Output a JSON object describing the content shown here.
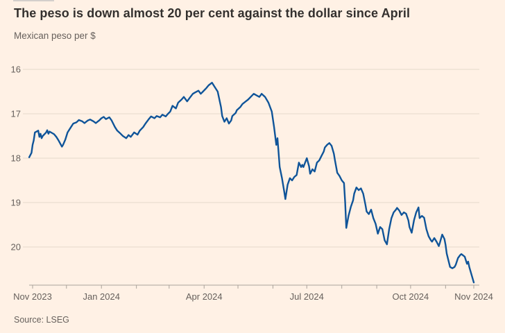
{
  "header": {
    "title": "The peso is down almost 20 per cent against the dollar since April",
    "subtitle": "Mexican peso per $"
  },
  "footer": {
    "source": "Source: LSEG"
  },
  "colors": {
    "background": "#FFF1E5",
    "title_text": "#33302E",
    "muted_text": "#66605C",
    "gridline": "#E6D9CC",
    "axis": "#A9A29A",
    "line": "#0F5499",
    "top_rule": "#D3CFCB"
  },
  "chart_data": {
    "type": "line",
    "title": "The peso is down almost 20 per cent against the dollar since April",
    "ylabel": "Mexican peso per $",
    "source": "Source: LSEG",
    "legend": "none",
    "grid": "horizontal",
    "y_axis": {
      "ticks": [
        16,
        17,
        18,
        19,
        20
      ],
      "min": 16,
      "max": 20.86,
      "inverted_for_currency": true
    },
    "x_axis": {
      "start": "2023-11-01",
      "end": "2024-11-26",
      "tick_dates": [
        "2023-11-01",
        "2023-12-01",
        "2024-01-01",
        "2024-02-01",
        "2024-03-01",
        "2024-04-01",
        "2024-05-01",
        "2024-06-01",
        "2024-07-01",
        "2024-08-01",
        "2024-09-01",
        "2024-10-01",
        "2024-11-01",
        "2024-11-26"
      ],
      "labels": [
        {
          "date": "2023-11-01",
          "label": "Nov 2023"
        },
        {
          "date": "2024-01-01",
          "label": "Jan 2024"
        },
        {
          "date": "2024-04-01",
          "label": "Apr 2024"
        },
        {
          "date": "2024-07-01",
          "label": "Jul 2024"
        },
        {
          "date": "2024-10-01",
          "label": "Oct 2024"
        },
        {
          "date": "2024-11-26",
          "label": "Nov 2024"
        }
      ]
    },
    "series": [
      {
        "name": "Mexican peso per US dollar",
        "color": "#0F5499",
        "points": [
          [
            "2023-10-29",
            17.98
          ],
          [
            "2023-10-31",
            17.88
          ],
          [
            "2023-11-01",
            17.7
          ],
          [
            "2023-11-02",
            17.6
          ],
          [
            "2023-11-03",
            17.42
          ],
          [
            "2023-11-06",
            17.38
          ],
          [
            "2023-11-07",
            17.52
          ],
          [
            "2023-11-08",
            17.45
          ],
          [
            "2023-11-09",
            17.55
          ],
          [
            "2023-11-10",
            17.5
          ],
          [
            "2023-11-13",
            17.42
          ],
          [
            "2023-11-14",
            17.37
          ],
          [
            "2023-11-15",
            17.45
          ],
          [
            "2023-11-16",
            17.4
          ],
          [
            "2023-11-20",
            17.46
          ],
          [
            "2023-11-22",
            17.52
          ],
          [
            "2023-11-24",
            17.6
          ],
          [
            "2023-11-27",
            17.74
          ],
          [
            "2023-11-28",
            17.7
          ],
          [
            "2023-11-30",
            17.58
          ],
          [
            "2023-12-02",
            17.42
          ],
          [
            "2023-12-05",
            17.3
          ],
          [
            "2023-12-07",
            17.22
          ],
          [
            "2023-12-10",
            17.19
          ],
          [
            "2023-12-12",
            17.14
          ],
          [
            "2023-12-15",
            17.17
          ],
          [
            "2023-12-17",
            17.21
          ],
          [
            "2023-12-20",
            17.15
          ],
          [
            "2023-12-22",
            17.13
          ],
          [
            "2023-12-25",
            17.17
          ],
          [
            "2023-12-27",
            17.21
          ],
          [
            "2023-12-30",
            17.15
          ],
          [
            "2024-01-01",
            17.1
          ],
          [
            "2024-01-03",
            17.07
          ],
          [
            "2024-01-05",
            17.12
          ],
          [
            "2024-01-08",
            17.08
          ],
          [
            "2024-01-10",
            17.15
          ],
          [
            "2024-01-13",
            17.3
          ],
          [
            "2024-01-15",
            17.38
          ],
          [
            "2024-01-18",
            17.45
          ],
          [
            "2024-01-20",
            17.5
          ],
          [
            "2024-01-23",
            17.55
          ],
          [
            "2024-01-25",
            17.48
          ],
          [
            "2024-01-27",
            17.52
          ],
          [
            "2024-01-30",
            17.42
          ],
          [
            "2024-02-02",
            17.47
          ],
          [
            "2024-02-04",
            17.38
          ],
          [
            "2024-02-07",
            17.3
          ],
          [
            "2024-02-09",
            17.22
          ],
          [
            "2024-02-12",
            17.12
          ],
          [
            "2024-02-14",
            17.06
          ],
          [
            "2024-02-17",
            17.1
          ],
          [
            "2024-02-19",
            17.05
          ],
          [
            "2024-02-22",
            17.08
          ],
          [
            "2024-02-24",
            17.02
          ],
          [
            "2024-02-27",
            17.06
          ],
          [
            "2024-02-29",
            17.0
          ],
          [
            "2024-03-02",
            16.95
          ],
          [
            "2024-03-04",
            16.82
          ],
          [
            "2024-03-07",
            16.88
          ],
          [
            "2024-03-09",
            16.75
          ],
          [
            "2024-03-12",
            16.68
          ],
          [
            "2024-03-14",
            16.62
          ],
          [
            "2024-03-17",
            16.72
          ],
          [
            "2024-03-19",
            16.65
          ],
          [
            "2024-03-22",
            16.55
          ],
          [
            "2024-03-24",
            16.52
          ],
          [
            "2024-03-27",
            16.48
          ],
          [
            "2024-03-29",
            16.55
          ],
          [
            "2024-03-31",
            16.5
          ],
          [
            "2024-04-03",
            16.42
          ],
          [
            "2024-04-05",
            16.36
          ],
          [
            "2024-04-08",
            16.3
          ],
          [
            "2024-04-11",
            16.42
          ],
          [
            "2024-04-13",
            16.5
          ],
          [
            "2024-04-16",
            16.85
          ],
          [
            "2024-04-17",
            17.05
          ],
          [
            "2024-04-19",
            17.18
          ],
          [
            "2024-04-21",
            17.1
          ],
          [
            "2024-04-23",
            17.22
          ],
          [
            "2024-04-25",
            17.15
          ],
          [
            "2024-04-26",
            17.05
          ],
          [
            "2024-04-29",
            16.98
          ],
          [
            "2024-04-30",
            16.92
          ],
          [
            "2024-05-03",
            16.85
          ],
          [
            "2024-05-05",
            16.78
          ],
          [
            "2024-05-08",
            16.72
          ],
          [
            "2024-05-10",
            16.68
          ],
          [
            "2024-05-13",
            16.6
          ],
          [
            "2024-05-15",
            16.55
          ],
          [
            "2024-05-17",
            16.58
          ],
          [
            "2024-05-20",
            16.62
          ],
          [
            "2024-05-22",
            16.55
          ],
          [
            "2024-05-25",
            16.62
          ],
          [
            "2024-05-28",
            16.75
          ],
          [
            "2024-05-31",
            16.95
          ],
          [
            "2024-06-02",
            17.3
          ],
          [
            "2024-06-04",
            17.7
          ],
          [
            "2024-06-05",
            17.55
          ],
          [
            "2024-06-07",
            18.2
          ],
          [
            "2024-06-09",
            18.45
          ],
          [
            "2024-06-11",
            18.75
          ],
          [
            "2024-06-12",
            18.92
          ],
          [
            "2024-06-14",
            18.6
          ],
          [
            "2024-06-16",
            18.45
          ],
          [
            "2024-06-18",
            18.5
          ],
          [
            "2024-06-20",
            18.42
          ],
          [
            "2024-06-22",
            18.38
          ],
          [
            "2024-06-24",
            18.1
          ],
          [
            "2024-06-26",
            18.2
          ],
          [
            "2024-06-27",
            18.15
          ],
          [
            "2024-06-28",
            18.2
          ],
          [
            "2024-07-01",
            18.0
          ],
          [
            "2024-07-03",
            18.18
          ],
          [
            "2024-07-04",
            18.35
          ],
          [
            "2024-07-06",
            18.25
          ],
          [
            "2024-07-08",
            18.3
          ],
          [
            "2024-07-10",
            18.1
          ],
          [
            "2024-07-12",
            18.05
          ],
          [
            "2024-07-14",
            17.95
          ],
          [
            "2024-07-16",
            17.85
          ],
          [
            "2024-07-17",
            17.76
          ],
          [
            "2024-07-19",
            17.7
          ],
          [
            "2024-07-21",
            17.66
          ],
          [
            "2024-07-23",
            17.72
          ],
          [
            "2024-07-25",
            17.9
          ],
          [
            "2024-07-26",
            18.05
          ],
          [
            "2024-07-28",
            18.33
          ],
          [
            "2024-07-30",
            18.4
          ],
          [
            "2024-08-01",
            18.5
          ],
          [
            "2024-08-03",
            18.56
          ],
          [
            "2024-08-04",
            19.0
          ],
          [
            "2024-08-05",
            19.57
          ],
          [
            "2024-08-07",
            19.3
          ],
          [
            "2024-08-09",
            19.1
          ],
          [
            "2024-08-11",
            18.95
          ],
          [
            "2024-08-12",
            18.8
          ],
          [
            "2024-08-14",
            18.66
          ],
          [
            "2024-08-16",
            18.72
          ],
          [
            "2024-08-18",
            18.68
          ],
          [
            "2024-08-20",
            18.8
          ],
          [
            "2024-08-22",
            19.05
          ],
          [
            "2024-08-23",
            19.2
          ],
          [
            "2024-08-25",
            19.26
          ],
          [
            "2024-08-27",
            19.16
          ],
          [
            "2024-08-29",
            19.35
          ],
          [
            "2024-08-31",
            19.48
          ],
          [
            "2024-09-02",
            19.7
          ],
          [
            "2024-09-04",
            19.55
          ],
          [
            "2024-09-06",
            19.6
          ],
          [
            "2024-09-08",
            19.85
          ],
          [
            "2024-09-10",
            19.94
          ],
          [
            "2024-09-12",
            19.6
          ],
          [
            "2024-09-14",
            19.35
          ],
          [
            "2024-09-16",
            19.22
          ],
          [
            "2024-09-18",
            19.16
          ],
          [
            "2024-09-19",
            19.12
          ],
          [
            "2024-09-21",
            19.18
          ],
          [
            "2024-09-23",
            19.28
          ],
          [
            "2024-09-25",
            19.22
          ],
          [
            "2024-09-27",
            19.25
          ],
          [
            "2024-09-29",
            19.4
          ],
          [
            "2024-09-30",
            19.55
          ],
          [
            "2024-10-02",
            19.68
          ],
          [
            "2024-10-04",
            19.4
          ],
          [
            "2024-10-06",
            19.22
          ],
          [
            "2024-10-08",
            19.11
          ],
          [
            "2024-10-09",
            19.35
          ],
          [
            "2024-10-11",
            19.3
          ],
          [
            "2024-10-13",
            19.34
          ],
          [
            "2024-10-15",
            19.6
          ],
          [
            "2024-10-17",
            19.76
          ],
          [
            "2024-10-19",
            19.85
          ],
          [
            "2024-10-20",
            19.88
          ],
          [
            "2024-10-22",
            19.8
          ],
          [
            "2024-10-24",
            19.88
          ],
          [
            "2024-10-26",
            19.98
          ],
          [
            "2024-10-27",
            19.9
          ],
          [
            "2024-10-29",
            19.72
          ],
          [
            "2024-10-31",
            19.82
          ],
          [
            "2024-11-01",
            19.95
          ],
          [
            "2024-11-02",
            20.15
          ],
          [
            "2024-11-04",
            20.35
          ],
          [
            "2024-11-05",
            20.45
          ],
          [
            "2024-11-07",
            20.48
          ],
          [
            "2024-11-09",
            20.45
          ],
          [
            "2024-11-10",
            20.4
          ],
          [
            "2024-11-12",
            20.25
          ],
          [
            "2024-11-14",
            20.18
          ],
          [
            "2024-11-15",
            20.16
          ],
          [
            "2024-11-18",
            20.22
          ],
          [
            "2024-11-20",
            20.38
          ],
          [
            "2024-11-21",
            20.33
          ],
          [
            "2024-11-22",
            20.45
          ],
          [
            "2024-11-26",
            20.8
          ]
        ]
      }
    ]
  }
}
